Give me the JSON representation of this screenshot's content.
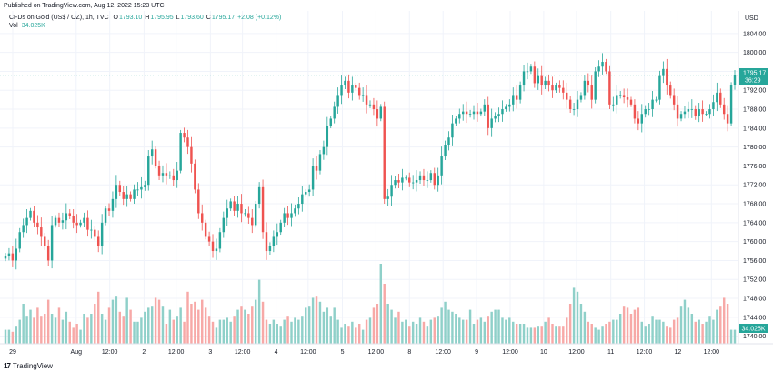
{
  "header": {
    "published": "Published on TradingView.com, Aug 12, 2022 15:23 UTC"
  },
  "legend": {
    "symbol": "CFDs on Gold (US$ / OZ), 1h, TVC",
    "o_label": "O",
    "o": "1793.10",
    "h_label": "H",
    "h": "1795.95",
    "l_label": "L",
    "l": "1793.60",
    "c_label": "C",
    "c": "1795.17",
    "change": "+2.08 (+0.12%)",
    "vol_label": "Vol",
    "vol_value": "34.025K"
  },
  "axis": {
    "currency": "USD",
    "price_ticks": [
      "1804.00",
      "1800.00",
      "1796.00",
      "1792.00",
      "1788.00",
      "1784.00",
      "1780.00",
      "1776.00",
      "1772.00",
      "1768.00",
      "1764.00",
      "1760.00",
      "1756.00",
      "1752.00",
      "1748.00",
      "1744.00",
      "1740.00"
    ],
    "time_ticks": [
      "29",
      "Aug",
      "12:00",
      "2",
      "12:00",
      "3",
      "12:00",
      "4",
      "12:00",
      "5",
      "12:00",
      "8",
      "12:00",
      "9",
      "12:00",
      "10",
      "12:00",
      "11",
      "12:00",
      "12",
      "12:00"
    ]
  },
  "badges": {
    "price": "1795.17",
    "countdown": "36:29",
    "volume": "34.025K"
  },
  "footer": {
    "logo": "17",
    "brand": "TradingView"
  },
  "colors": {
    "up": "#26a69a",
    "down": "#ef5350",
    "up_vol": "#8fd0c9",
    "down_vol": "#f7a9a7",
    "grid": "#f0f3fa",
    "axis_text": "#131722"
  },
  "chart_data": {
    "type": "candlestick",
    "title": "CFDs on Gold (US$ / OZ), 1h, TVC",
    "ylabel": "USD",
    "ylim": [
      1736.2,
      1808.2
    ],
    "series_close": [
      1757.0,
      1757.5,
      1756.0,
      1758.5,
      1762.0,
      1763.5,
      1765.0,
      1766.5,
      1764.0,
      1763.0,
      1761.0,
      1759.0,
      1756.0,
      1763.5,
      1765.0,
      1764.0,
      1764.5,
      1766.0,
      1765.5,
      1764.0,
      1763.5,
      1764.0,
      1765.0,
      1762.5,
      1762.5,
      1761.0,
      1759.0,
      1764.0,
      1767.0,
      1766.5,
      1769.0,
      1772.0,
      1770.5,
      1769.0,
      1770.0,
      1769.0,
      1771.0,
      1771.0,
      1771.5,
      1772.0,
      1778.0,
      1779.5,
      1776.0,
      1774.0,
      1774.5,
      1774.0,
      1774.0,
      1773.0,
      1775.0,
      1783.0,
      1782.0,
      1780.0,
      1776.5,
      1771.0,
      1766.0,
      1764.0,
      1761.0,
      1760.0,
      1758.0,
      1758.5,
      1762.0,
      1765.0,
      1767.0,
      1768.5,
      1766.5,
      1768.0,
      1766.0,
      1766.0,
      1765.0,
      1763.5,
      1768.0,
      1771.5,
      1762.0,
      1758.0,
      1759.0,
      1761.0,
      1762.0,
      1764.0,
      1766.0,
      1765.0,
      1766.0,
      1767.0,
      1768.0,
      1770.0,
      1770.5,
      1771.0,
      1776.0,
      1775.0,
      1778.5,
      1780.0,
      1784.5,
      1786.0,
      1788.5,
      1791.0,
      1793.0,
      1794.0,
      1791.5,
      1793.0,
      1792.5,
      1791.0,
      1791.0,
      1789.0,
      1789.0,
      1788.0,
      1786.0,
      1788.5,
      1769.0,
      1769.5,
      1772.0,
      1773.0,
      1772.5,
      1773.5,
      1773.5,
      1772.5,
      1772.5,
      1773.0,
      1774.0,
      1773.0,
      1773.0,
      1774.5,
      1772.0,
      1774.0,
      1778.0,
      1780.5,
      1782.0,
      1785.0,
      1786.0,
      1787.0,
      1787.5,
      1787.0,
      1787.0,
      1787.5,
      1787.0,
      1787.5,
      1789.0,
      1784.0,
      1786.0,
      1786.5,
      1787.0,
      1788.0,
      1788.5,
      1789.0,
      1791.0,
      1790.0,
      1793.0,
      1796.0,
      1796.0,
      1797.0,
      1793.5,
      1795.0,
      1793.0,
      1794.0,
      1793.0,
      1792.0,
      1793.0,
      1792.5,
      1791.5,
      1790.0,
      1788.0,
      1788.0,
      1790.0,
      1791.0,
      1794.0,
      1793.0,
      1790.0,
      1796.0,
      1797.0,
      1798.0,
      1796.0,
      1789.0,
      1789.0,
      1791.0,
      1791.0,
      1790.5,
      1790.0,
      1789.0,
      1786.0,
      1785.0,
      1787.0,
      1788.0,
      1788.0,
      1790.0,
      1790.0,
      1795.0,
      1796.5,
      1793.0,
      1791.0,
      1789.0,
      1786.0,
      1787.0,
      1787.5,
      1788.0,
      1788.0,
      1786.5,
      1788.0,
      1787.0,
      1787.0,
      1788.0,
      1789.5,
      1791.5,
      1789.0,
      1787.0,
      1785.0,
      1793.1,
      1795.17
    ],
    "series_volume": [
      7,
      7,
      6,
      9,
      12,
      20,
      14,
      17,
      13,
      18,
      14,
      15,
      22,
      15,
      13,
      18,
      12,
      16,
      11,
      8,
      10,
      7,
      15,
      13,
      15,
      20,
      26,
      15,
      12,
      18,
      22,
      24,
      16,
      14,
      23,
      17,
      11,
      11,
      13,
      16,
      18,
      19,
      23,
      22,
      19,
      10,
      17,
      12,
      14,
      18,
      11,
      26,
      20,
      21,
      17,
      22,
      18,
      14,
      11,
      8,
      12,
      12,
      13,
      11,
      14,
      17,
      19,
      17,
      15,
      19,
      22,
      32,
      21,
      12,
      10,
      12,
      10,
      9,
      12,
      14,
      11,
      13,
      12,
      14,
      18,
      19,
      23,
      24,
      21,
      16,
      18,
      14,
      18,
      12,
      8,
      10,
      9,
      11,
      8,
      10,
      7,
      12,
      13,
      18,
      20,
      40,
      30,
      20,
      17,
      13,
      16,
      11,
      12,
      9,
      11,
      10,
      13,
      11,
      9,
      12,
      13,
      14,
      18,
      21,
      17,
      16,
      15,
      13,
      12,
      12,
      17,
      10,
      12,
      13,
      11,
      14,
      16,
      17,
      17,
      13,
      12,
      13,
      11,
      10,
      10,
      10,
      8,
      8,
      8,
      9,
      9,
      11,
      13,
      10,
      9,
      9,
      9,
      13,
      20,
      28,
      26,
      20,
      16,
      11,
      10,
      8,
      7,
      9,
      10,
      11,
      12,
      12,
      15,
      19,
      18,
      15,
      17,
      18,
      11,
      9,
      10,
      14,
      12,
      12,
      11,
      9,
      8,
      12,
      13,
      19,
      22,
      18,
      15,
      11,
      12,
      10,
      11,
      14,
      12,
      17,
      19,
      23,
      20
    ]
  }
}
